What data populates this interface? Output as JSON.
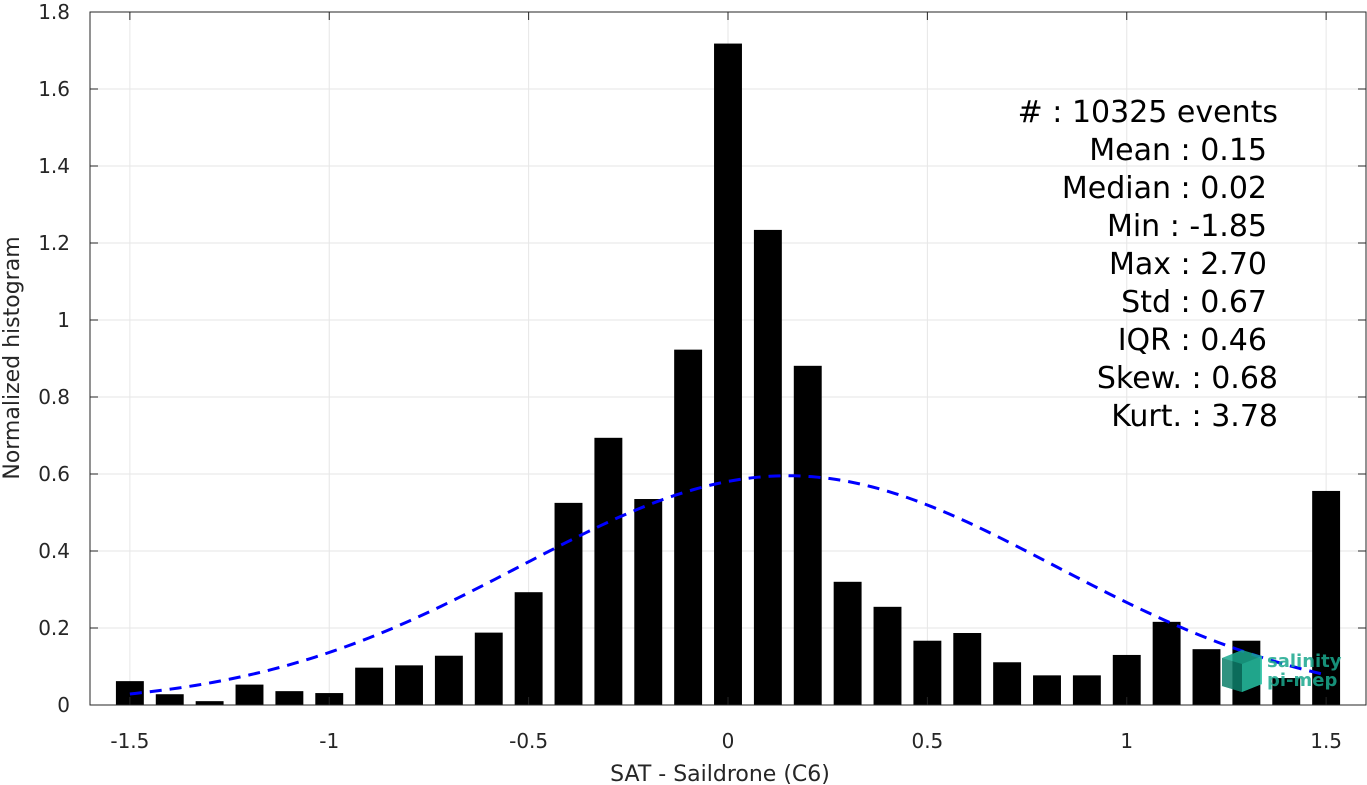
{
  "chart_data": {
    "type": "bar",
    "xlabel": "SAT - Saildrone (C6)",
    "ylabel": "Normalized histogram",
    "xlim": [
      -1.6,
      1.6
    ],
    "ylim": [
      0,
      1.8
    ],
    "xticks": [
      "-1.5",
      "-1",
      "-0.5",
      "0",
      "0.5",
      "1",
      "1.5"
    ],
    "yticks": [
      "0",
      "0.2",
      "0.4",
      "0.6",
      "0.8",
      "1",
      "1.2",
      "1.4",
      "1.6",
      "1.8"
    ],
    "grid": true,
    "bin_width": 0.1,
    "bar_color": "#000000",
    "x": [
      -1.5,
      -1.4,
      -1.3,
      -1.2,
      -1.1,
      -1.0,
      -0.9,
      -0.8,
      -0.7,
      -0.6,
      -0.5,
      -0.4,
      -0.3,
      -0.2,
      -0.1,
      0.0,
      0.1,
      0.2,
      0.3,
      0.4,
      0.5,
      0.6,
      0.7,
      0.8,
      0.9,
      1.0,
      1.1,
      1.2,
      1.3,
      1.4,
      1.5
    ],
    "values": [
      0.062,
      0.028,
      0.01,
      0.053,
      0.036,
      0.031,
      0.097,
      0.103,
      0.128,
      0.188,
      0.293,
      0.525,
      0.694,
      0.535,
      0.923,
      1.718,
      1.234,
      0.881,
      0.32,
      0.255,
      0.167,
      0.187,
      0.111,
      0.077,
      0.077,
      0.13,
      0.216,
      0.145,
      0.167,
      0.07,
      0.556
    ],
    "fit": {
      "type": "gaussian",
      "mean": 0.15,
      "std": 0.67,
      "x_range": [
        -1.5,
        1.5
      ],
      "color": "#0000ff",
      "style": "dashed"
    },
    "annotations": [
      "#  : 10325 events",
      "Mean : 0.15",
      "Median : 0.02",
      "Min : -1.85",
      "Max : 2.70",
      "Std : 0.67",
      "IQR : 0.46",
      "Skew. : 0.68",
      "Kurt. : 3.78"
    ]
  },
  "logo": {
    "line1": "salinity",
    "line2": "pi-mep",
    "color": "#1aa88e"
  }
}
